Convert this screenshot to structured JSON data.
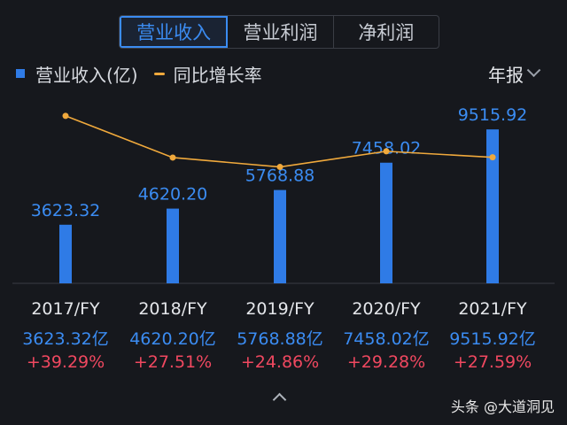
{
  "tabs": [
    {
      "label": "营业收入",
      "active": true
    },
    {
      "label": "营业利润",
      "active": false
    },
    {
      "label": "净利润",
      "active": false
    }
  ],
  "legend": {
    "bar_label": "营业收入(亿)",
    "line_label": "同比增长率"
  },
  "period_selector": {
    "label": "年报"
  },
  "colors": {
    "bar": "#2f7be6",
    "line": "#f0a93c",
    "value_text": "#3b8cf2",
    "growth_text": "#f04860"
  },
  "chart_data": {
    "type": "bar",
    "categories": [
      "2017/FY",
      "2018/FY",
      "2019/FY",
      "2020/FY",
      "2021/FY"
    ],
    "series": [
      {
        "name": "营业收入(亿)",
        "type": "bar",
        "values": [
          3623.32,
          4620.2,
          5768.88,
          7458.02,
          9515.92
        ]
      },
      {
        "name": "同比增长率",
        "type": "line",
        "values": [
          39.29,
          27.51,
          24.86,
          29.28,
          27.59
        ]
      }
    ],
    "bar_labels": [
      "3623.32",
      "4620.20",
      "5768.88",
      "7458.02",
      "9515.92"
    ],
    "value_labels": [
      "3623.32亿",
      "4620.20亿",
      "5768.88亿",
      "7458.02亿",
      "9515.92亿"
    ],
    "growth_labels": [
      "+39.29%",
      "+27.51%",
      "+24.86%",
      "+29.28%",
      "+27.59%"
    ]
  },
  "watermark": "头条 @大道洞见"
}
